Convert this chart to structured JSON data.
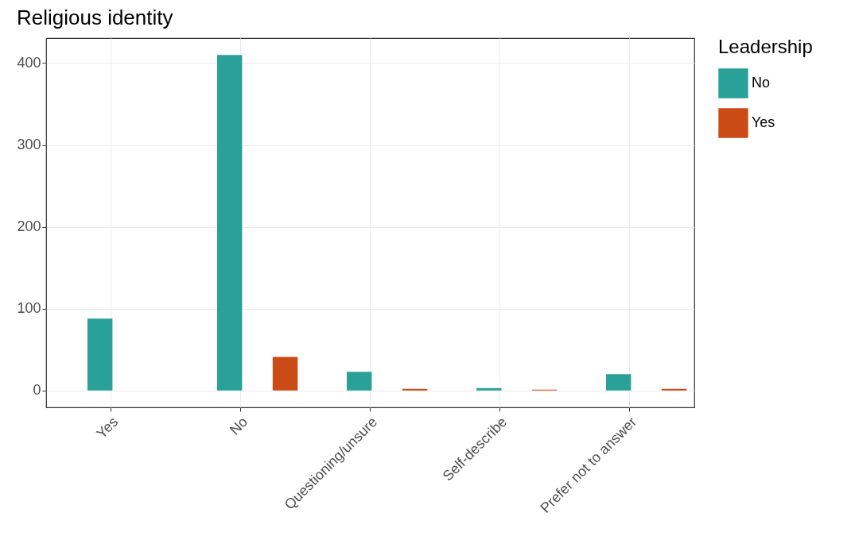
{
  "chart_data": {
    "type": "bar",
    "title": "Religious identity",
    "legend_title": "Leadership",
    "categories": [
      "Yes",
      "No",
      "Questioning/unsure",
      "Self-describe",
      "Prefer not to answer"
    ],
    "series": [
      {
        "name": "No",
        "color": "#2aa198",
        "values": [
          88,
          410,
          23,
          3,
          20
        ]
      },
      {
        "name": "Yes",
        "color": "#cb4b16",
        "values": [
          null,
          41,
          2,
          1,
          2
        ]
      }
    ],
    "ylim": [
      -20.5,
      430.5
    ],
    "yticks": [
      0,
      100,
      200,
      300,
      400
    ],
    "grid": true,
    "legend": "right"
  }
}
